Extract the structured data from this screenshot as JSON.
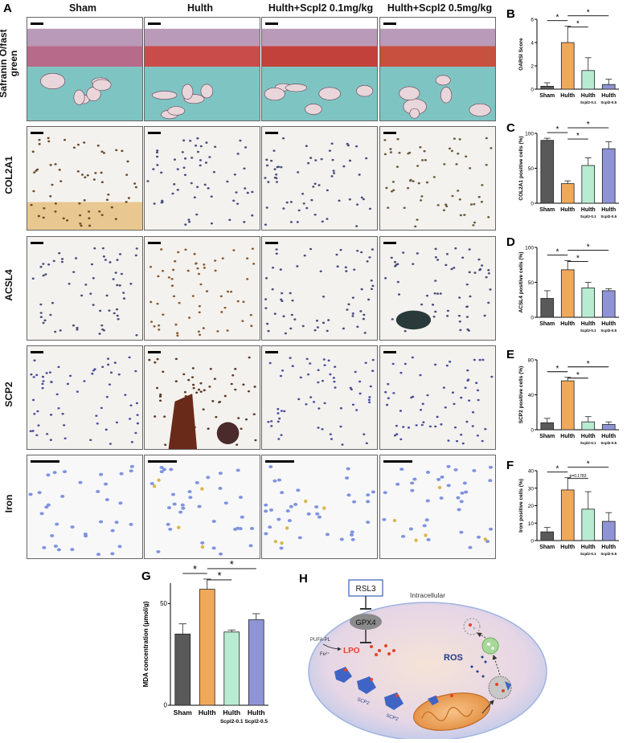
{
  "panelA": {
    "letter": "A",
    "columns": [
      "Sham",
      "Hulth",
      "Hulth+Scpl2 0.1mg/kg",
      "Hulth+Scpl2 0.5mg/kg"
    ],
    "rows": [
      "Safranin O/fast green",
      "COL2A1",
      "ACSL4",
      "SCP2",
      "Iron"
    ]
  },
  "bar_colors": [
    "#595959",
    "#f0a95a",
    "#b8ecd2",
    "#8e94d6"
  ],
  "chart_data": [
    {
      "id": "B",
      "type": "bar",
      "letter": "B",
      "categories": [
        "Sham",
        "Hulth",
        "Hulth",
        "Hulth"
      ],
      "sublabels": [
        "",
        "",
        "Scpl2-0.1",
        "Scpl2-0.5"
      ],
      "values": [
        0.25,
        4.0,
        1.6,
        0.4
      ],
      "errors": [
        0.3,
        1.4,
        1.1,
        0.45
      ],
      "ylabel": "OARSI Score",
      "ylim": [
        0,
        6
      ],
      "yticks": [
        0,
        2,
        4,
        6
      ],
      "annotations": [
        {
          "from": 0,
          "to": 1,
          "text": "*"
        },
        {
          "from": 1,
          "to": 2,
          "text": "*"
        },
        {
          "from": 1,
          "to": 3,
          "text": "*"
        }
      ]
    },
    {
      "id": "C",
      "type": "bar",
      "letter": "C",
      "categories": [
        "Sham",
        "Hulth",
        "Hulth",
        "Hulth"
      ],
      "sublabels": [
        "",
        "",
        "Scpl2-0.1",
        "Scpl2-0.5"
      ],
      "values": [
        90,
        28,
        54,
        78
      ],
      "errors": [
        3,
        4,
        11,
        10
      ],
      "ylabel": "COL2A1 positive cells (%)",
      "ylim": [
        0,
        100
      ],
      "yticks": [
        0,
        50,
        100
      ],
      "annotations": [
        {
          "from": 0,
          "to": 1,
          "text": "*"
        },
        {
          "from": 1,
          "to": 2,
          "text": "*"
        },
        {
          "from": 1,
          "to": 3,
          "text": "*"
        }
      ]
    },
    {
      "id": "D",
      "type": "bar",
      "letter": "D",
      "categories": [
        "Sham",
        "Hulth",
        "Hulth",
        "Hulth"
      ],
      "sublabels": [
        "",
        "",
        "Scpl2-0.1",
        "Scpl2-0.5"
      ],
      "values": [
        27,
        68,
        42,
        38
      ],
      "errors": [
        11,
        13,
        8,
        3
      ],
      "ylabel": "ACSL4 positive cells (%)",
      "ylim": [
        0,
        100
      ],
      "yticks": [
        0,
        50,
        100
      ],
      "annotations": [
        {
          "from": 0,
          "to": 1,
          "text": "*"
        },
        {
          "from": 1,
          "to": 2,
          "text": "*"
        },
        {
          "from": 1,
          "to": 3,
          "text": "*"
        }
      ]
    },
    {
      "id": "E",
      "type": "bar",
      "letter": "E",
      "categories": [
        "Sham",
        "Hulth",
        "Hulth",
        "Hulth"
      ],
      "sublabels": [
        "",
        "",
        "Scpl2-0.1",
        "Scpl2-0.5"
      ],
      "values": [
        8,
        56,
        9,
        6
      ],
      "errors": [
        5,
        4,
        6,
        3
      ],
      "ylabel": "SCP2 positive cells (%)",
      "ylim": [
        0,
        80
      ],
      "yticks": [
        0,
        40,
        80
      ],
      "annotations": [
        {
          "from": 0,
          "to": 1,
          "text": "*"
        },
        {
          "from": 1,
          "to": 2,
          "text": "*"
        },
        {
          "from": 1,
          "to": 3,
          "text": "*"
        }
      ]
    },
    {
      "id": "F",
      "type": "bar",
      "letter": "F",
      "categories": [
        "Sham",
        "Hulth",
        "Hulth",
        "Hulth"
      ],
      "sublabels": [
        "",
        "",
        "Scpl2-0.1",
        "Scpl2-0.5"
      ],
      "values": [
        5,
        29,
        18,
        11
      ],
      "errors": [
        2.5,
        7,
        10,
        5
      ],
      "ylabel": "Iron positive cells (%)",
      "ylim": [
        0,
        40
      ],
      "yticks": [
        0,
        10,
        20,
        30,
        40
      ],
      "annotations": [
        {
          "from": 0,
          "to": 1,
          "text": "*"
        },
        {
          "from": 1,
          "to": 2,
          "text": "p=0.1783"
        },
        {
          "from": 1,
          "to": 3,
          "text": "*"
        }
      ]
    },
    {
      "id": "G",
      "type": "bar",
      "letter": "G",
      "categories": [
        "Sham",
        "Hulth",
        "Hulth",
        "Hulth"
      ],
      "sublabels": [
        "",
        "",
        "Scpl2-0.1",
        "Scpl2-0.5"
      ],
      "values": [
        35,
        57,
        36,
        42
      ],
      "errors": [
        5,
        5,
        1,
        3
      ],
      "ylabel": "MDA concentration (μmol/g)",
      "ylim": [
        0,
        60
      ],
      "yticks": [
        0,
        50
      ],
      "annotations": [
        {
          "from": 0,
          "to": 1,
          "text": "*"
        },
        {
          "from": 1,
          "to": 2,
          "text": "*"
        },
        {
          "from": 1,
          "to": 3,
          "text": "*"
        }
      ]
    }
  ],
  "panelH": {
    "letter": "H",
    "rsl3": "RSL3",
    "intracellular": "Intracellular",
    "gpx4": "GPX4",
    "pufa": "PUFA-PL",
    "fe": "Fe²⁺",
    "lpo": "LPO",
    "ros": "ROS",
    "scp2_labels": [
      "SCP2",
      "SCP2"
    ]
  }
}
